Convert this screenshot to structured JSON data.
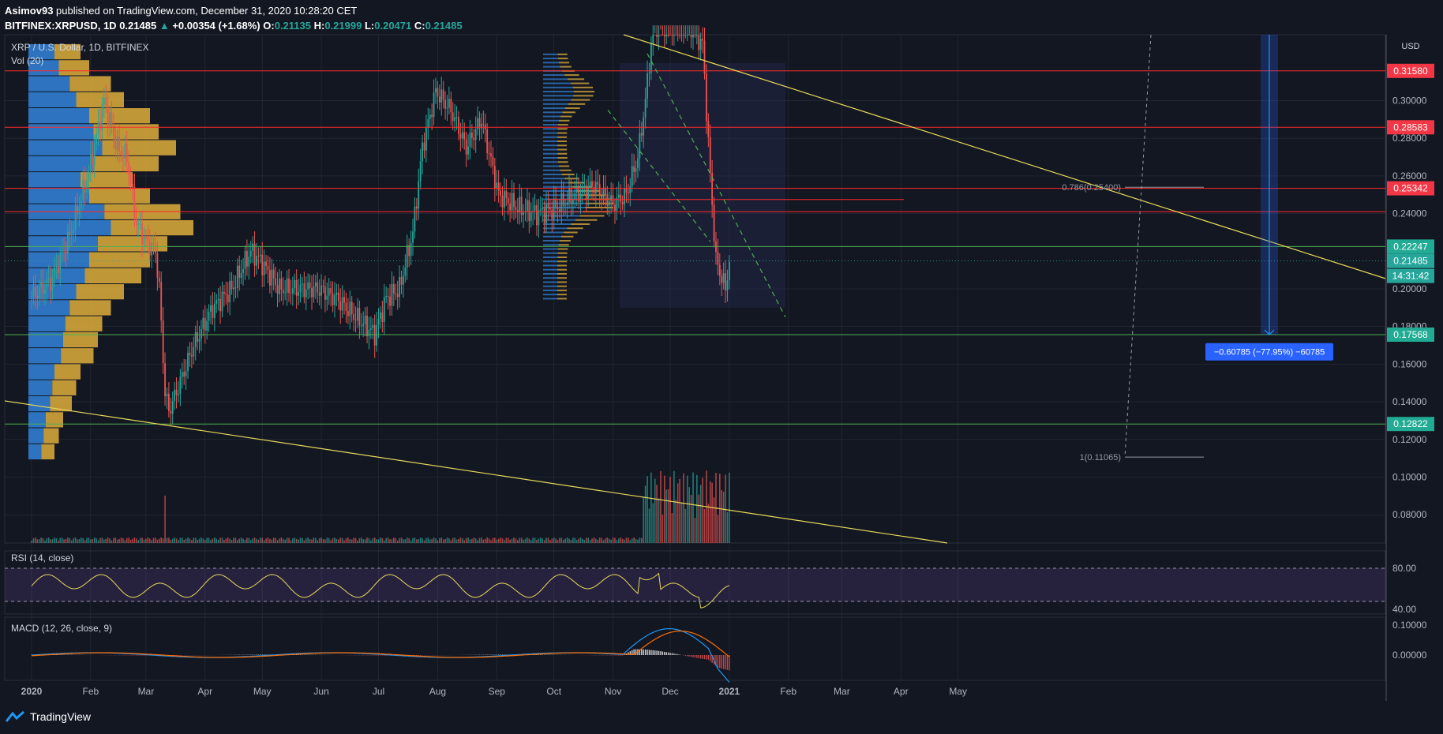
{
  "header": {
    "author": "Asimov93",
    "published": "published on TradingView.com, December 31, 2020 10:28:20 CET",
    "symbol": "BITFINEX:XRPUSD, 1D",
    "last": "0.21485",
    "change": "+0.00354 (+1.68%)",
    "o_label": "O:",
    "o": "0.21135",
    "h_label": "H:",
    "h": "0.21999",
    "l_label": "L:",
    "l": "0.20471",
    "c_label": "C:",
    "c": "0.21485"
  },
  "legend": {
    "title": "XRP / U.S. Dollar, 1D, BITFINEX",
    "vol": "Vol (20)",
    "rsi": "RSI (14, close)",
    "macd": "MACD (12, 26, close, 9)"
  },
  "colors": {
    "bg": "#131722",
    "grid": "#2a2e39",
    "up": "#26a69a",
    "down": "#ef5350",
    "red_line": "#ff2a2a",
    "green_line": "#4caf50",
    "yellow": "#e6d85a",
    "profile_blue": "#2e78c8",
    "profile_orange": "#d4a53a",
    "rsi": "#e6d85a",
    "macd": "#2196f3",
    "signal": "#ff6d00"
  },
  "footer": {
    "brand": "TradingView",
    "brand_icon": "tradingview-logo-icon"
  },
  "chart_data": {
    "type": "candlestick",
    "currency": "USD",
    "x_ticks": [
      "2020",
      "Feb",
      "Mar",
      "Apr",
      "May",
      "Jun",
      "Jul",
      "Aug",
      "Sep",
      "Oct",
      "Nov",
      "Dec",
      "2021",
      "Feb",
      "Mar",
      "Apr",
      "May"
    ],
    "y_ticks": [
      "0.30000",
      "0.28000",
      "0.26000",
      "0.24000",
      "0.20000",
      "0.18000",
      "0.16000",
      "0.14000",
      "0.12000",
      "0.10000",
      "0.08000"
    ],
    "ylim": [
      0.065,
      0.335
    ],
    "price_labels": [
      {
        "value": 0.3158,
        "text": "0.31580",
        "color": "red"
      },
      {
        "value": 0.28583,
        "text": "0.28583",
        "color": "red"
      },
      {
        "value": 0.25342,
        "text": "0.25342",
        "color": "red"
      },
      {
        "value": 0.22247,
        "text": "0.22247",
        "color": "green"
      },
      {
        "value": 0.21485,
        "text": "0.21485",
        "color": "teal"
      },
      {
        "value": 0.17568,
        "text": "0.17568",
        "color": "green"
      },
      {
        "value": 0.12822,
        "text": "0.12822",
        "color": "green"
      }
    ],
    "countdown": "14:31:42",
    "fib_labels": [
      {
        "text": "0.786(0.25400)",
        "value": 0.254
      },
      {
        "text": "1(0.11065)",
        "value": 0.11065
      }
    ],
    "measure_label": "−0.60785 (−77.95%) −60785",
    "rsi_ticks": [
      "80.00",
      "40.00"
    ],
    "macd_ticks": [
      "0.10000",
      "0.00000"
    ],
    "series": [
      {
        "name": "price",
        "points": [
          {
            "d": 0,
            "v": 0.196
          },
          {
            "d": 10,
            "v": 0.204
          },
          {
            "d": 20,
            "v": 0.228
          },
          {
            "d": 30,
            "v": 0.262
          },
          {
            "d": 38,
            "v": 0.3
          },
          {
            "d": 45,
            "v": 0.275
          },
          {
            "d": 50,
            "v": 0.27
          },
          {
            "d": 55,
            "v": 0.235
          },
          {
            "d": 60,
            "v": 0.225
          },
          {
            "d": 65,
            "v": 0.22
          },
          {
            "d": 67,
            "v": 0.2
          },
          {
            "d": 70,
            "v": 0.145
          },
          {
            "d": 72,
            "v": 0.135
          },
          {
            "d": 76,
            "v": 0.145
          },
          {
            "d": 85,
            "v": 0.17
          },
          {
            "d": 95,
            "v": 0.19
          },
          {
            "d": 105,
            "v": 0.2
          },
          {
            "d": 115,
            "v": 0.22
          },
          {
            "d": 120,
            "v": 0.215
          },
          {
            "d": 130,
            "v": 0.2
          },
          {
            "d": 140,
            "v": 0.2
          },
          {
            "d": 150,
            "v": 0.2
          },
          {
            "d": 160,
            "v": 0.195
          },
          {
            "d": 170,
            "v": 0.185
          },
          {
            "d": 180,
            "v": 0.176
          },
          {
            "d": 186,
            "v": 0.195
          },
          {
            "d": 193,
            "v": 0.2
          },
          {
            "d": 200,
            "v": 0.23
          },
          {
            "d": 205,
            "v": 0.275
          },
          {
            "d": 212,
            "v": 0.305
          },
          {
            "d": 220,
            "v": 0.295
          },
          {
            "d": 228,
            "v": 0.275
          },
          {
            "d": 236,
            "v": 0.29
          },
          {
            "d": 245,
            "v": 0.25
          },
          {
            "d": 255,
            "v": 0.243
          },
          {
            "d": 265,
            "v": 0.24
          },
          {
            "d": 275,
            "v": 0.243
          },
          {
            "d": 285,
            "v": 0.25
          },
          {
            "d": 295,
            "v": 0.255
          },
          {
            "d": 305,
            "v": 0.245
          },
          {
            "d": 312,
            "v": 0.25
          },
          {
            "d": 318,
            "v": 0.27
          },
          {
            "d": 322,
            "v": 0.3
          },
          {
            "d": 326,
            "v": 0.34
          },
          {
            "d": 335,
            "v": 0.34
          },
          {
            "d": 345,
            "v": 0.34
          },
          {
            "d": 352,
            "v": 0.33
          },
          {
            "d": 356,
            "v": 0.26
          },
          {
            "d": 359,
            "v": 0.215
          },
          {
            "d": 364,
            "v": 0.2
          },
          {
            "d": 366,
            "v": 0.21485
          }
        ]
      }
    ]
  }
}
